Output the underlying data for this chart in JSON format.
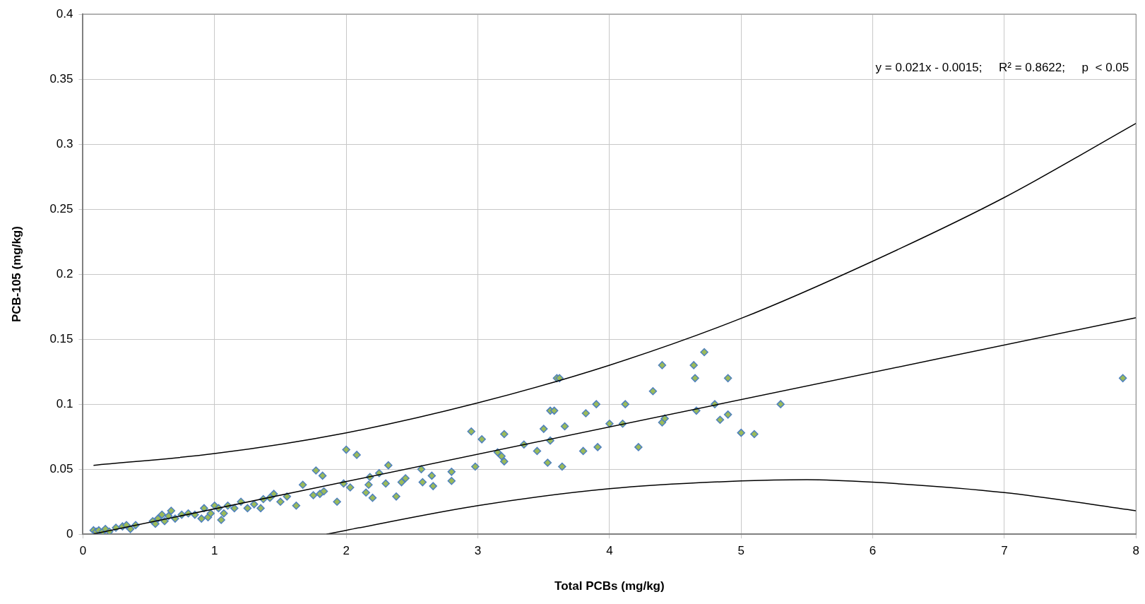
{
  "chart_data": {
    "type": "scatter",
    "xlabel": "Total PCBs (mg/kg)",
    "ylabel": "PCB-105 (mg/kg)",
    "xlim": [
      0,
      8
    ],
    "ylim": [
      0,
      0.4
    ],
    "xticks": [
      0,
      1,
      2,
      3,
      4,
      5,
      6,
      7,
      8
    ],
    "yticks": [
      0,
      0.05,
      0.1,
      0.15,
      0.2,
      0.25,
      0.3,
      0.35,
      0.4
    ],
    "grid": true,
    "legend": false,
    "marker": "diamond",
    "annotations": [
      "y = 0.021x - 0.0015;     R² = 0.8622;     p  < 0.05"
    ],
    "series": [
      {
        "color": "#9bbb59",
        "x": [
          0.08,
          0.1,
          0.12,
          0.15,
          0.17,
          0.2,
          0.25,
          0.3,
          0.33,
          0.36,
          0.4,
          0.53,
          0.55,
          0.57,
          0.6,
          0.62,
          0.65,
          0.67,
          0.7,
          0.75,
          0.8,
          0.85,
          0.9,
          0.92,
          0.95,
          0.97,
          1.0,
          1.03,
          1.05,
          1.07,
          1.1,
          1.15,
          1.2,
          1.25,
          1.3,
          1.35,
          1.37,
          1.42,
          1.45,
          1.5,
          1.55,
          1.62,
          1.67,
          1.75,
          1.77,
          1.8,
          1.82,
          1.83,
          1.93,
          1.98,
          2.0,
          2.03,
          2.08,
          2.15,
          2.17,
          2.18,
          2.2,
          2.25,
          2.3,
          2.32,
          2.38,
          2.42,
          2.45,
          2.57,
          2.58,
          2.65,
          2.66,
          2.8,
          2.8,
          2.95,
          2.98,
          3.03,
          3.15,
          3.18,
          3.2,
          3.2,
          3.35,
          3.45,
          3.5,
          3.53,
          3.55,
          3.55,
          3.58,
          3.6,
          3.62,
          3.64,
          3.66,
          3.8,
          3.82,
          3.9,
          3.91,
          4.0,
          4.1,
          4.12,
          4.22,
          4.33,
          4.4,
          4.4,
          4.42,
          4.64,
          4.65,
          4.66,
          4.72,
          4.8,
          4.84,
          4.9,
          4.9,
          5.0,
          5.1,
          5.3,
          7.9
        ],
        "values": [
          0.003,
          0.002,
          0.003,
          0.002,
          0.004,
          0.002,
          0.005,
          0.006,
          0.007,
          0.004,
          0.007,
          0.01,
          0.008,
          0.012,
          0.015,
          0.01,
          0.014,
          0.018,
          0.012,
          0.015,
          0.016,
          0.015,
          0.012,
          0.02,
          0.013,
          0.016,
          0.022,
          0.02,
          0.011,
          0.016,
          0.022,
          0.02,
          0.025,
          0.02,
          0.023,
          0.02,
          0.027,
          0.028,
          0.031,
          0.025,
          0.029,
          0.022,
          0.038,
          0.03,
          0.049,
          0.031,
          0.045,
          0.033,
          0.025,
          0.039,
          0.065,
          0.036,
          0.061,
          0.032,
          0.038,
          0.044,
          0.028,
          0.047,
          0.039,
          0.053,
          0.029,
          0.04,
          0.043,
          0.05,
          0.04,
          0.045,
          0.037,
          0.048,
          0.041,
          0.079,
          0.052,
          0.073,
          0.063,
          0.06,
          0.056,
          0.077,
          0.069,
          0.064,
          0.081,
          0.055,
          0.072,
          0.095,
          0.095,
          0.12,
          0.12,
          0.052,
          0.083,
          0.064,
          0.093,
          0.1,
          0.067,
          0.085,
          0.085,
          0.1,
          0.067,
          0.11,
          0.13,
          0.086,
          0.089,
          0.13,
          0.12,
          0.095,
          0.14,
          0.1,
          0.088,
          0.12,
          0.092,
          0.078,
          0.077,
          0.1,
          0.12
        ]
      },
      {
        "type": "line",
        "color": "#000000",
        "marker": "none",
        "x": [
          0.08,
          8
        ],
        "values": [
          0.0002,
          0.1665
        ]
      },
      {
        "type": "line",
        "color": "#000000",
        "marker": "none",
        "x": [
          0.08,
          1,
          2,
          3,
          4,
          5,
          6,
          7,
          8
        ],
        "values": [
          0.053,
          0.062,
          0.078,
          0.101,
          0.13,
          0.166,
          0.21,
          0.259,
          0.316
        ]
      },
      {
        "type": "line",
        "color": "#000000",
        "marker": "none",
        "x": [
          1.85,
          2,
          3,
          4,
          5,
          5.5,
          6,
          7,
          8
        ],
        "values": [
          0,
          0.003,
          0.022,
          0.035,
          0.041,
          0.042,
          0.04,
          0.032,
          0.018
        ]
      }
    ]
  }
}
